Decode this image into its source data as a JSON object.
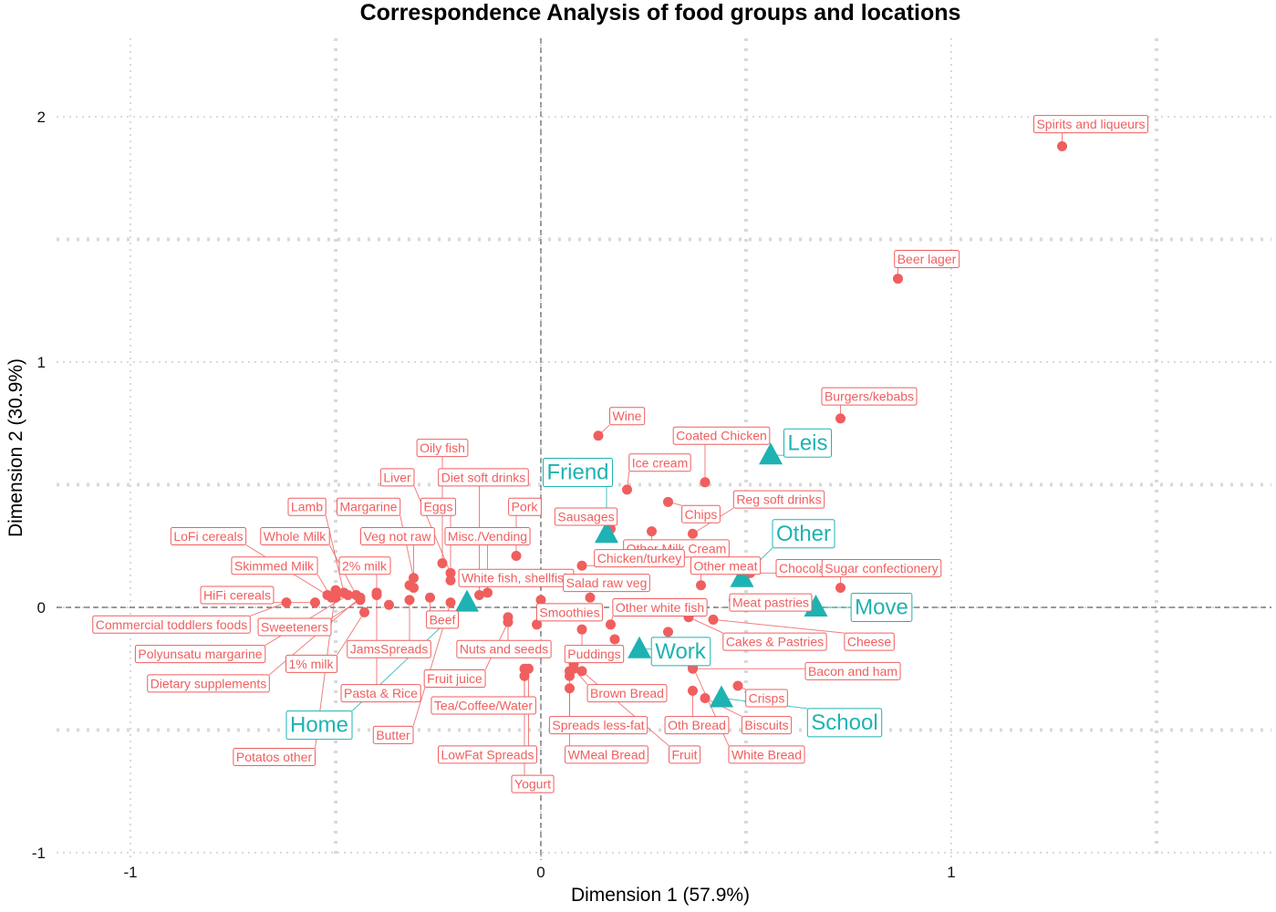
{
  "chart_data": {
    "type": "scatter",
    "title": "Correspondence Analysis of food groups and locations",
    "xlabel": "Dimension 1 (57.9%)",
    "ylabel": "Dimension 2 (30.9%)",
    "xlim": [
      -1.18,
      1.78
    ],
    "ylim": [
      -1.03,
      2.32
    ],
    "x_ticks": [
      {
        "v": -1,
        "label": "-1"
      },
      {
        "v": 0,
        "label": "0"
      },
      {
        "v": 1,
        "label": "1"
      }
    ],
    "y_ticks": [
      {
        "v": -1,
        "label": "-1"
      },
      {
        "v": 0,
        "label": "0"
      },
      {
        "v": 1,
        "label": "1"
      },
      {
        "v": 2,
        "label": "2"
      }
    ],
    "x_grid": [
      -1,
      -0.5,
      0,
      0.5,
      1,
      1.5
    ],
    "y_grid": [
      -1,
      -0.5,
      0,
      0.5,
      1,
      1.5,
      2
    ],
    "grid": true,
    "legend": "none",
    "colors": {
      "rows": "#F05E5E",
      "columns": "#1FB2B2"
    },
    "series": [
      {
        "points": [
          {
            "label": "Spirits and liqueurs",
            "x": 1.27,
            "y": 1.88,
            "lx": 1.34,
            "ly": 1.97
          },
          {
            "label": "Beer lager",
            "x": 0.87,
            "y": 1.34,
            "lx": 0.94,
            "ly": 1.42
          },
          {
            "label": "Burgers/kebabs",
            "x": 0.73,
            "y": 0.77,
            "lx": 0.8,
            "ly": 0.86
          },
          {
            "label": "Wine",
            "x": 0.14,
            "y": 0.7,
            "lx": 0.21,
            "ly": 0.78
          },
          {
            "label": "Coated Chicken",
            "x": 0.4,
            "y": 0.51,
            "lx": 0.44,
            "ly": 0.7
          },
          {
            "label": "Ice cream",
            "x": 0.21,
            "y": 0.48,
            "lx": 0.29,
            "ly": 0.59
          },
          {
            "label": "Reg soft drinks",
            "x": 0.37,
            "y": 0.3,
            "lx": 0.58,
            "ly": 0.44
          },
          {
            "label": "Chips",
            "x": 0.31,
            "y": 0.43,
            "lx": 0.39,
            "ly": 0.38
          },
          {
            "label": "Sausages",
            "x": 0.17,
            "y": 0.32,
            "lx": 0.11,
            "ly": 0.37
          },
          {
            "label": "Other Milk Cream",
            "x": 0.27,
            "y": 0.31,
            "lx": 0.33,
            "ly": 0.24
          },
          {
            "label": "Chicken/turkey",
            "x": 0.1,
            "y": 0.17,
            "lx": 0.24,
            "ly": 0.2
          },
          {
            "label": "Other meat",
            "x": 0.39,
            "y": 0.09,
            "lx": 0.45,
            "ly": 0.17
          },
          {
            "label": "Chocolate",
            "x": 0.51,
            "y": 0.14,
            "lx": 0.65,
            "ly": 0.16
          },
          {
            "label": "Sugar confectionery",
            "x": 0.73,
            "y": 0.08,
            "lx": 0.83,
            "ly": 0.16
          },
          {
            "label": "Meat pastries",
            "x": 0.47,
            "y": 0.03,
            "lx": 0.56,
            "ly": 0.02
          },
          {
            "label": "Pork",
            "x": -0.06,
            "y": 0.21,
            "lx": -0.04,
            "ly": 0.41
          },
          {
            "label": "Misc./Vending",
            "x": -0.13,
            "y": 0.06,
            "lx": -0.13,
            "ly": 0.29
          },
          {
            "label": "Diet soft drinks",
            "x": -0.15,
            "y": 0.05,
            "lx": -0.14,
            "ly": 0.53
          },
          {
            "label": "Oily fish",
            "x": -0.24,
            "y": 0.18,
            "lx": -0.24,
            "ly": 0.65
          },
          {
            "label": "Liver",
            "x": -0.22,
            "y": 0.14,
            "lx": -0.35,
            "ly": 0.53
          },
          {
            "label": "Eggs",
            "x": -0.22,
            "y": 0.11,
            "lx": -0.25,
            "ly": 0.41
          },
          {
            "label": "Margarine",
            "x": -0.31,
            "y": 0.12,
            "lx": -0.42,
            "ly": 0.41
          },
          {
            "label": "Veg not raw",
            "x": -0.31,
            "y": 0.08,
            "lx": -0.35,
            "ly": 0.29
          },
          {
            "label": "Lamb",
            "x": -0.48,
            "y": 0.06,
            "lx": -0.57,
            "ly": 0.41
          },
          {
            "label": "Whole Milk",
            "x": -0.45,
            "y": 0.05,
            "lx": -0.6,
            "ly": 0.29
          },
          {
            "label": "LoFi cereals",
            "x": -0.52,
            "y": 0.05,
            "lx": -0.81,
            "ly": 0.29
          },
          {
            "label": "2% milk",
            "x": -0.4,
            "y": 0.06,
            "lx": -0.43,
            "ly": 0.17
          },
          {
            "label": "Skimmed Milk",
            "x": -0.51,
            "y": 0.04,
            "lx": -0.65,
            "ly": 0.17
          },
          {
            "label": "HiFi cereals",
            "x": -0.55,
            "y": 0.02,
            "lx": -0.74,
            "ly": 0.05
          },
          {
            "label": "White fish, shellfish",
            "x": -0.14,
            "y": 0.13,
            "lx": -0.06,
            "ly": 0.12
          },
          {
            "label": "Salad raw veg",
            "x": 0.12,
            "y": 0.04,
            "lx": 0.16,
            "ly": 0.1
          },
          {
            "label": "Commercial toddlers foods",
            "x": -0.62,
            "y": 0.02,
            "lx": -0.9,
            "ly": -0.07
          },
          {
            "label": "Sweeteners",
            "x": -0.44,
            "y": 0.03,
            "lx": -0.6,
            "ly": -0.08
          },
          {
            "label": "Beef",
            "x": -0.27,
            "y": 0.04,
            "lx": -0.24,
            "ly": -0.05
          },
          {
            "label": "Smoothies",
            "x": 0.0,
            "y": 0.03,
            "lx": 0.07,
            "ly": -0.02
          },
          {
            "label": "Other white fish",
            "x": 0.17,
            "y": -0.07,
            "lx": 0.29,
            "ly": 0.0
          },
          {
            "label": "Polyunsatu margarine",
            "x": -0.47,
            "y": 0.05,
            "lx": -0.83,
            "ly": -0.19
          },
          {
            "label": "JamsSpreads",
            "x": -0.32,
            "y": 0.03,
            "lx": -0.37,
            "ly": -0.17
          },
          {
            "label": "Nuts and seeds",
            "x": -0.08,
            "y": -0.04,
            "lx": -0.09,
            "ly": -0.17
          },
          {
            "label": "Cakes & Pastries",
            "x": 0.36,
            "y": -0.04,
            "lx": 0.57,
            "ly": -0.14
          },
          {
            "label": "Cheese",
            "x": 0.42,
            "y": -0.05,
            "lx": 0.8,
            "ly": -0.14
          },
          {
            "label": "Puddings",
            "x": 0.1,
            "y": -0.09,
            "lx": 0.13,
            "ly": -0.19
          },
          {
            "label": "1% milk",
            "x": -0.43,
            "y": -0.02,
            "lx": -0.56,
            "ly": -0.23
          },
          {
            "label": "Bacon and ham",
            "x": 0.37,
            "y": -0.25,
            "lx": 0.76,
            "ly": -0.26
          },
          {
            "label": "Dietary supplements",
            "x": -0.44,
            "y": 0.04,
            "lx": -0.81,
            "ly": -0.31
          },
          {
            "label": "Fruit juice",
            "x": -0.08,
            "y": -0.06,
            "lx": -0.21,
            "ly": -0.29
          },
          {
            "label": "Pasta & Rice",
            "x": -0.4,
            "y": 0.05,
            "lx": -0.39,
            "ly": -0.35
          },
          {
            "label": "Brown Bread",
            "x": 0.08,
            "y": -0.25,
            "lx": 0.21,
            "ly": -0.35
          },
          {
            "label": "Crisps",
            "x": 0.48,
            "y": -0.32,
            "lx": 0.55,
            "ly": -0.37
          },
          {
            "label": "Tea/Coffee/Water",
            "x": -0.04,
            "y": -0.25,
            "lx": -0.14,
            "ly": -0.4
          },
          {
            "label": "Spreads less-fat",
            "x": 0.07,
            "y": -0.28,
            "lx": 0.14,
            "ly": -0.48
          },
          {
            "label": "Oth Bread",
            "x": 0.37,
            "y": -0.34,
            "lx": 0.38,
            "ly": -0.48
          },
          {
            "label": "Biscuits",
            "x": 0.4,
            "y": -0.37,
            "lx": 0.55,
            "ly": -0.48
          },
          {
            "label": "Butter",
            "x": -0.22,
            "y": 0.02,
            "lx": -0.36,
            "ly": -0.52
          },
          {
            "label": "LowFat Spreads",
            "x": -0.03,
            "y": -0.25,
            "lx": -0.13,
            "ly": -0.6
          },
          {
            "label": "WMeal Bread",
            "x": 0.07,
            "y": -0.33,
            "lx": 0.16,
            "ly": -0.6
          },
          {
            "label": "Fruit",
            "x": 0.1,
            "y": -0.26,
            "lx": 0.35,
            "ly": -0.6
          },
          {
            "label": "White Bread",
            "x": 0.37,
            "y": -0.24,
            "lx": 0.55,
            "ly": -0.6
          },
          {
            "label": "Potatos other",
            "x": -0.5,
            "y": 0.07,
            "lx": -0.65,
            "ly": -0.61
          },
          {
            "label": "Yogurt",
            "x": -0.04,
            "y": -0.28,
            "lx": -0.02,
            "ly": -0.72
          },
          {
            "label": "",
            "x": -0.01,
            "y": -0.07
          },
          {
            "label": "",
            "x": 0.18,
            "y": -0.13
          },
          {
            "label": "",
            "x": 0.31,
            "y": -0.1
          },
          {
            "label": "",
            "x": 0.08,
            "y": -0.23
          },
          {
            "label": "",
            "x": 0.07,
            "y": -0.26
          },
          {
            "label": "",
            "x": -0.37,
            "y": 0.01
          },
          {
            "label": "",
            "x": -0.32,
            "y": 0.09
          },
          {
            "label": "",
            "x": -0.5,
            "y": 0.04
          }
        ]
      },
      {
        "points": [
          {
            "label": "Leis",
            "x": 0.56,
            "y": 0.62,
            "lx": 0.65,
            "ly": 0.67
          },
          {
            "label": "Friend",
            "x": 0.16,
            "y": 0.3,
            "lx": 0.09,
            "ly": 0.55
          },
          {
            "label": "Other",
            "x": 0.49,
            "y": 0.12,
            "lx": 0.64,
            "ly": 0.3
          },
          {
            "label": "Move",
            "x": 0.67,
            "y": 0.0,
            "lx": 0.83,
            "ly": 0.0
          },
          {
            "label": "Work",
            "x": 0.24,
            "y": -0.17,
            "lx": 0.34,
            "ly": -0.18
          },
          {
            "label": "Home",
            "x": -0.18,
            "y": 0.02,
            "lx": -0.54,
            "ly": -0.48
          },
          {
            "label": "School",
            "x": 0.44,
            "y": -0.37,
            "lx": 0.74,
            "ly": -0.47
          }
        ]
      }
    ]
  }
}
